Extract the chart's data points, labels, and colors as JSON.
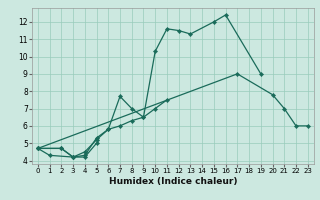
{
  "xlabel": "Humidex (Indice chaleur)",
  "xlim": [
    -0.5,
    23.5
  ],
  "ylim": [
    3.8,
    12.8
  ],
  "xticks": [
    0,
    1,
    2,
    3,
    4,
    5,
    6,
    7,
    8,
    9,
    10,
    11,
    12,
    13,
    14,
    15,
    16,
    17,
    18,
    19,
    20,
    21,
    22,
    23
  ],
  "yticks": [
    4,
    5,
    6,
    7,
    8,
    9,
    10,
    11,
    12
  ],
  "background_color": "#cce8e0",
  "grid_color": "#99ccbb",
  "line_color": "#1a6b5a",
  "series": [
    {
      "x": [
        0,
        1,
        3,
        4,
        5
      ],
      "y": [
        4.7,
        4.3,
        4.2,
        4.2,
        5.0
      ]
    },
    {
      "x": [
        0,
        2,
        3,
        4,
        5,
        6,
        7,
        8,
        9,
        10,
        11
      ],
      "y": [
        4.7,
        4.7,
        4.2,
        4.3,
        5.3,
        5.8,
        6.0,
        6.3,
        6.5,
        7.0,
        7.5
      ]
    },
    {
      "x": [
        0,
        2,
        3,
        4,
        5,
        6,
        7,
        8,
        9,
        10,
        11,
        12,
        13,
        15,
        16,
        19
      ],
      "y": [
        4.7,
        4.7,
        4.2,
        4.5,
        5.2,
        5.8,
        7.7,
        7.0,
        6.5,
        10.3,
        11.6,
        11.5,
        11.3,
        12.0,
        12.4,
        9.0
      ]
    },
    {
      "x": [
        0,
        17,
        20,
        21,
        22,
        23
      ],
      "y": [
        4.7,
        9.0,
        7.8,
        7.0,
        6.0,
        6.0
      ]
    }
  ]
}
